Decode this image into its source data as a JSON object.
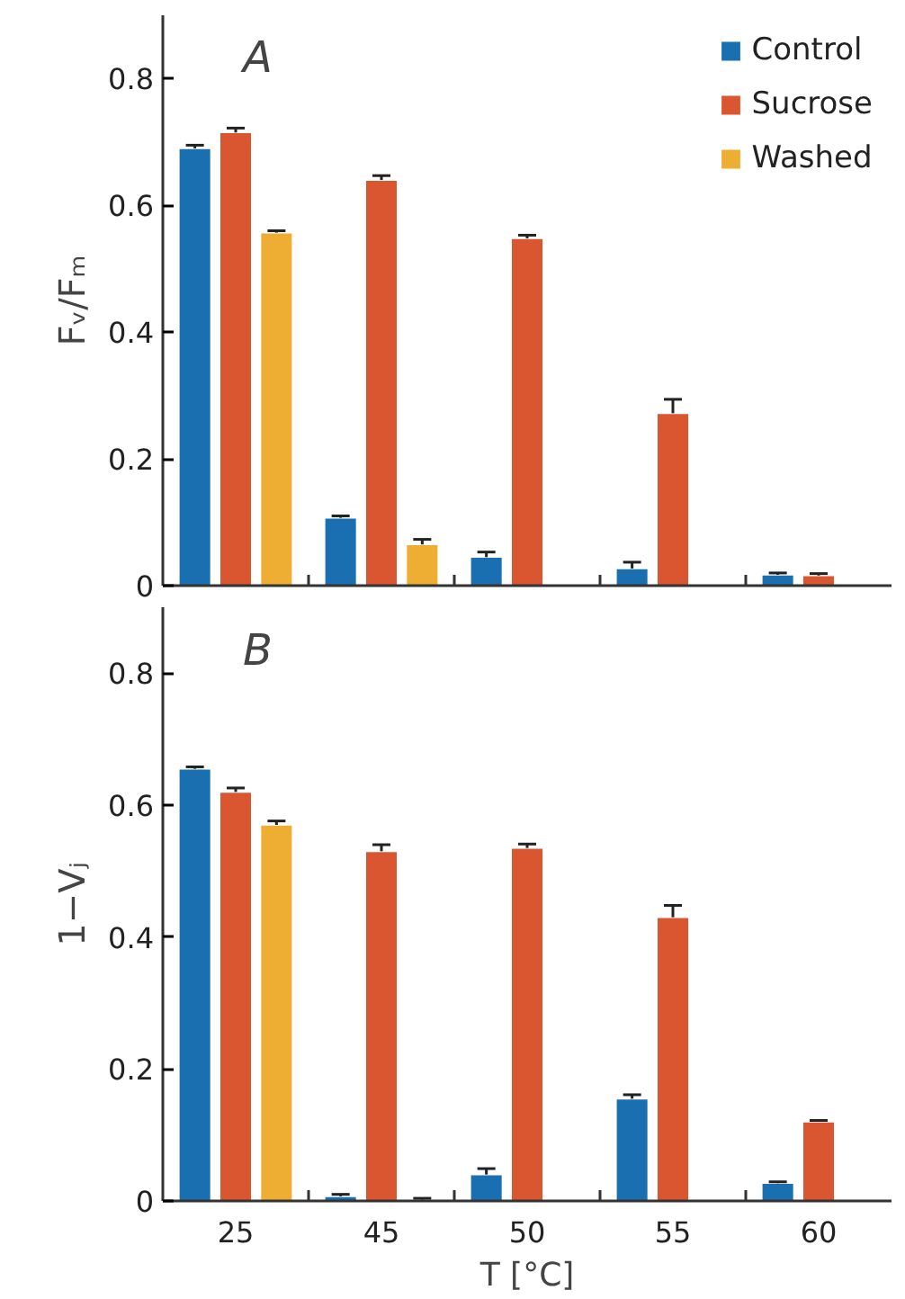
{
  "chart_data": [
    {
      "type": "bar",
      "categories": [
        "25",
        "45",
        "50",
        "55",
        "60"
      ],
      "ylabel": "Fᵥ/Fₘ",
      "ylim": [
        0,
        0.9
      ],
      "yticks": [
        0,
        0.2,
        0.4,
        0.6,
        0.8
      ],
      "tick_labels": "y",
      "legend": "top right",
      "grid": false,
      "annotations": [
        "A"
      ],
      "series": [
        {
          "name": "Control",
          "color": "#1a6fb0",
          "values": [
            0.69,
            0.107,
            0.045,
            0.027,
            0.017
          ],
          "errors": [
            0.005,
            0.003,
            0.008,
            0.01,
            0.003
          ]
        },
        {
          "name": "Sucrose",
          "color": "#d95631",
          "values": [
            0.715,
            0.64,
            0.548,
            0.272,
            0.016
          ],
          "errors": [
            0.007,
            0.007,
            0.005,
            0.022,
            0.003
          ]
        },
        {
          "name": "Washed",
          "color": "#edae33",
          "values": [
            0.557,
            0.065,
            null,
            null,
            null
          ],
          "errors": [
            0.003,
            0.008,
            null,
            null,
            null
          ]
        }
      ]
    },
    {
      "type": "bar",
      "categories": [
        "25",
        "45",
        "50",
        "55",
        "60"
      ],
      "xlabel": "T [°C]",
      "ylabel": "1−Vⱼ",
      "ylim": [
        0,
        0.9
      ],
      "yticks": [
        0,
        0.2,
        0.4,
        0.6,
        0.8
      ],
      "legend": false,
      "grid": false,
      "annotations": [
        "B"
      ],
      "series": [
        {
          "color": "#1a6fb0",
          "values": [
            0.655,
            0.007,
            0.04,
            0.155,
            0.027
          ],
          "errors": [
            0.003,
            0.003,
            0.009,
            0.006,
            0.002
          ]
        },
        {
          "color": "#d95631",
          "values": [
            0.62,
            0.53,
            0.535,
            0.43,
            0.12
          ],
          "errors": [
            0.006,
            0.01,
            0.006,
            0.018,
            0.002
          ]
        },
        {
          "color": "#edae33",
          "values": [
            0.57,
            0.002,
            null,
            null,
            null
          ],
          "errors": [
            0.006,
            0.002,
            null,
            null,
            null
          ]
        }
      ]
    }
  ]
}
